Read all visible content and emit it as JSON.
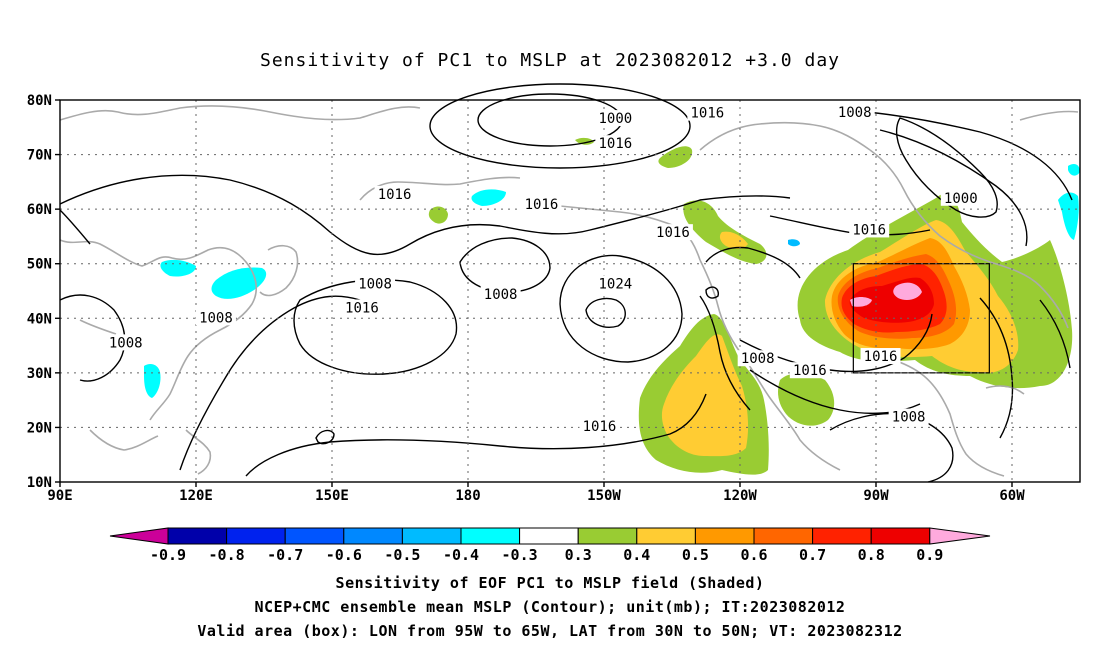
{
  "title": "Sensitivity of PC1 to MSLP at 2023082012 +3.0 day",
  "lat_labels": [
    "80N",
    "70N",
    "60N",
    "50N",
    "40N",
    "30N",
    "20N",
    "10N"
  ],
  "lon_labels": [
    "90E",
    "120E",
    "150E",
    "180",
    "150W",
    "120W",
    "90W",
    "60W"
  ],
  "contour_labels": [
    {
      "value": "1000",
      "lon": -147.5,
      "lat": 76.5
    },
    {
      "value": "1016",
      "lon": -147.5,
      "lat": 71.9
    },
    {
      "value": "1016",
      "lon": -127.2,
      "lat": 77.5
    },
    {
      "value": "1008",
      "lon": -94.7,
      "lat": 77.6
    },
    {
      "value": "1000",
      "lon": -71.3,
      "lat": 61.9
    },
    {
      "value": "1016",
      "lon": 163.8,
      "lat": 62.6
    },
    {
      "value": "1016",
      "lon": -163.8,
      "lat": 60.8
    },
    {
      "value": "1016",
      "lon": -134.8,
      "lat": 55.6
    },
    {
      "value": "1016",
      "lon": -91.5,
      "lat": 56.1
    },
    {
      "value": "1008",
      "lon": 159.5,
      "lat": 46.2
    },
    {
      "value": "1008",
      "lon": -172.8,
      "lat": 44.3
    },
    {
      "value": "1024",
      "lon": -147.5,
      "lat": 46.2
    },
    {
      "value": "1016",
      "lon": 156.6,
      "lat": 41.8
    },
    {
      "value": "1008",
      "lon": 124.4,
      "lat": 40.0
    },
    {
      "value": "1008",
      "lon": 104.5,
      "lat": 35.4
    },
    {
      "value": "1008",
      "lon": -116.1,
      "lat": 32.5
    },
    {
      "value": "1016",
      "lon": -104.6,
      "lat": 30.3
    },
    {
      "value": "1016",
      "lon": -89.0,
      "lat": 32.9
    },
    {
      "value": "1016",
      "lon": -151.0,
      "lat": 20.1
    },
    {
      "value": "1008",
      "lon": -82.8,
      "lat": 21.8
    }
  ],
  "colorbar": {
    "ticks": [
      "-0.9",
      "-0.8",
      "-0.7",
      "-0.6",
      "-0.5",
      "-0.4",
      "-0.3",
      "0.3",
      "0.4",
      "0.5",
      "0.6",
      "0.7",
      "0.8",
      "0.9"
    ],
    "colors": [
      "#cc0099",
      "#0000aa",
      "#0022ee",
      "#0055ff",
      "#0088ff",
      "#00bbff",
      "#00ffff",
      "#ffffff",
      "#99cc33",
      "#ffcc33",
      "#ff9900",
      "#ff6600",
      "#ff2200",
      "#ee0000",
      "#ffaadd"
    ]
  },
  "captions": [
    "Sensitivity of EOF PC1 to MSLP field (Shaded)",
    "NCEP+CMC ensemble mean MSLP (Contour); unit(mb); IT:2023082012",
    "Valid area (box): LON from 95W to 65W, LAT from 30N to 50N; VT: 2023082312"
  ],
  "valid_box": {
    "lon_min": -95,
    "lon_max": -65,
    "lat_min": 30,
    "lat_max": 50
  },
  "map_extent": {
    "lon_min": 90,
    "lon_max": 315,
    "lat_min": 10,
    "lat_max": 80
  }
}
